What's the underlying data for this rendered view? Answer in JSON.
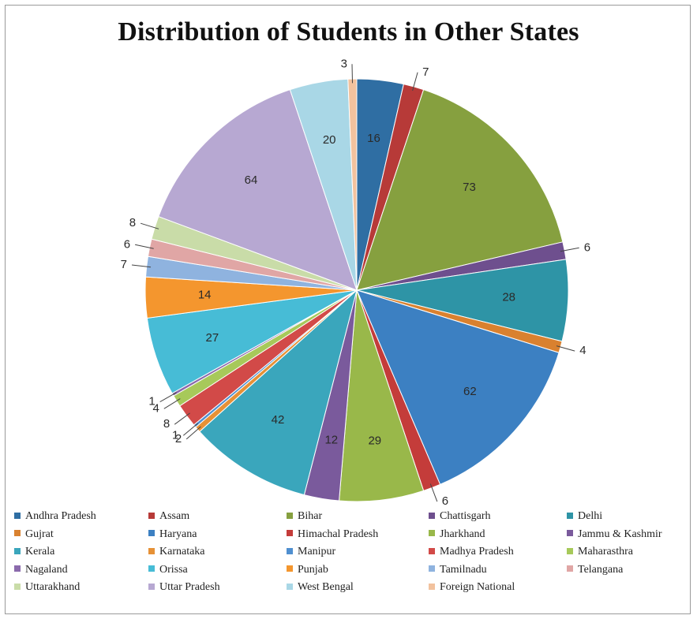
{
  "chart_data": {
    "type": "pie",
    "title": "Distribution  of Students in Other States",
    "legend_position": "bottom",
    "slices": [
      {
        "label": "Andhra Pradesh",
        "value": 16,
        "color": "#2f6ea3"
      },
      {
        "label": "Assam",
        "value": 7,
        "color": "#b73a38"
      },
      {
        "label": "Bihar",
        "value": 73,
        "color": "#86a03f"
      },
      {
        "label": "Chattisgarh",
        "value": 6,
        "color": "#6e4f8e"
      },
      {
        "label": "Delhi",
        "value": 28,
        "color": "#2e94a6"
      },
      {
        "label": "Gujrat",
        "value": 4,
        "color": "#d9812f"
      },
      {
        "label": "Haryana",
        "value": 62,
        "color": "#3c80c2"
      },
      {
        "label": "Himachal Pradesh",
        "value": 6,
        "color": "#c43c3a"
      },
      {
        "label": "Jharkhand",
        "value": 29,
        "color": "#99b84a"
      },
      {
        "label": "Jammu & Kashmir",
        "value": 12,
        "color": "#7a5a9c"
      },
      {
        "label": "Kerala",
        "value": 42,
        "color": "#3aa6bc"
      },
      {
        "label": "Karnataka",
        "value": 2,
        "color": "#e69136"
      },
      {
        "label": "Manipur",
        "value": 1,
        "color": "#4f8fd0"
      },
      {
        "label": "Madhya Pradesh",
        "value": 8,
        "color": "#d24a48"
      },
      {
        "label": "Maharasthra",
        "value": 4,
        "color": "#a7c95a"
      },
      {
        "label": "Nagaland",
        "value": 1,
        "color": "#8b6aac"
      },
      {
        "label": "Orissa",
        "value": 27,
        "color": "#47bcd6"
      },
      {
        "label": "Punjab",
        "value": 14,
        "color": "#f4962e"
      },
      {
        "label": "Tamilnadu",
        "value": 7,
        "color": "#8fb3df"
      },
      {
        "label": "Telangana",
        "value": 6,
        "color": "#e0a6a5"
      },
      {
        "label": "Uttarakhand",
        "value": 8,
        "color": "#c9dca8"
      },
      {
        "label": "Uttar Pradesh",
        "value": 64,
        "color": "#b7a8d2"
      },
      {
        "label": "West Bengal",
        "value": 20,
        "color": "#a9d7e6"
      },
      {
        "label": "Foreign National",
        "value": 3,
        "color": "#f2c29e"
      }
    ]
  }
}
